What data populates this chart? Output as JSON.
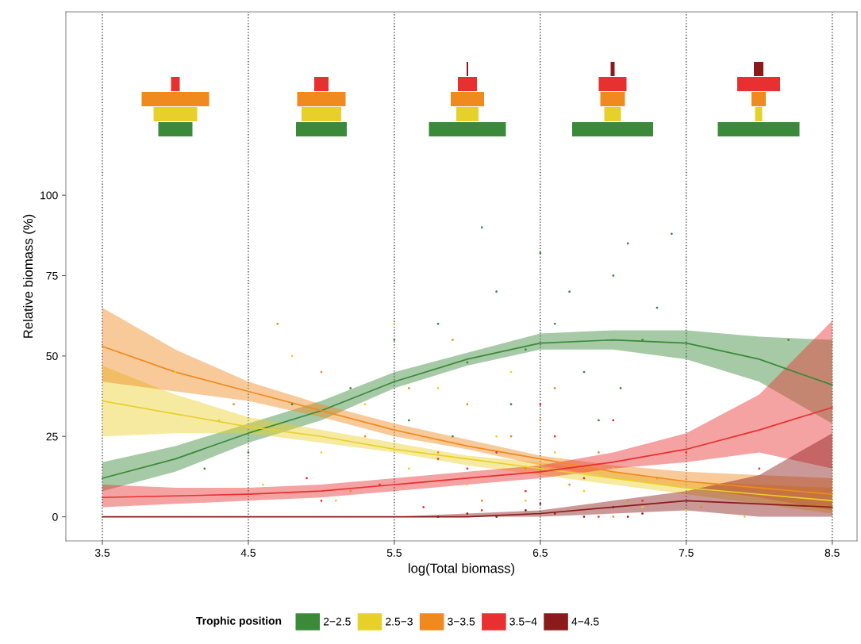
{
  "chart_data": {
    "type": "line",
    "xlabel": "log(Total biomass)",
    "ylabel": "Relative biomass (%)",
    "legend_title": "Trophic position",
    "xlim": [
      3.25,
      8.67
    ],
    "ylim": [
      -7.5,
      157
    ],
    "xticks": [
      3.5,
      4.5,
      5.5,
      6.5,
      7.5,
      8.5
    ],
    "yticks": [
      0,
      25,
      50,
      75,
      100
    ],
    "grid": "x",
    "legend": "bottom",
    "marker": "none",
    "line_style": "solid",
    "x": [
      3.5,
      4.0,
      4.5,
      5.0,
      5.5,
      6.0,
      6.5,
      7.0,
      7.5,
      8.0,
      8.5
    ],
    "series": [
      {
        "type": "scatter",
        "color": "#3a8a3a",
        "x": [
          5.2,
          5.5,
          5.8,
          6.0,
          6.2,
          6.3,
          6.5,
          6.6,
          6.8,
          7.0,
          7.1,
          7.2,
          7.3,
          6.9,
          6.4,
          5.9,
          4.8,
          4.5,
          4.2,
          7.4,
          8.2,
          6.1,
          5.6,
          7.05,
          6.7
        ],
        "values": [
          40,
          55,
          60,
          48,
          70,
          35,
          82,
          60,
          45,
          75,
          85,
          55,
          65,
          30,
          52,
          25,
          35,
          20,
          15,
          88,
          55,
          90,
          30,
          40,
          70
        ]
      },
      {
        "type": "scatter",
        "color": "#e8d02a",
        "x": [
          4.0,
          4.3,
          4.8,
          5.0,
          5.3,
          5.6,
          5.8,
          6.0,
          6.2,
          6.4,
          6.6,
          6.8,
          7.0,
          7.2,
          5.5,
          4.6,
          6.3,
          7.5,
          7.9,
          5.1
        ],
        "values": [
          45,
          30,
          50,
          20,
          35,
          15,
          40,
          10,
          25,
          5,
          20,
          8,
          15,
          3,
          60,
          10,
          45,
          2,
          0,
          5
        ]
      },
      {
        "type": "scatter",
        "color": "#f08a1e",
        "x": [
          4.7,
          5.0,
          5.3,
          5.6,
          5.8,
          6.0,
          6.1,
          6.3,
          6.5,
          6.7,
          6.9,
          7.1,
          7.3,
          5.2,
          5.9,
          6.4,
          7.0,
          4.4,
          6.6,
          7.6
        ],
        "values": [
          60,
          45,
          25,
          40,
          20,
          35,
          5,
          25,
          30,
          10,
          20,
          5,
          12,
          8,
          55,
          15,
          0,
          35,
          40,
          3
        ]
      },
      {
        "type": "scatter",
        "color": "#e83030",
        "x": [
          5.0,
          5.4,
          5.7,
          6.0,
          6.2,
          6.4,
          6.6,
          6.8,
          7.0,
          7.2,
          7.5,
          6.1,
          5.8,
          6.9,
          4.9,
          8.0,
          6.5
        ],
        "values": [
          5,
          10,
          3,
          15,
          20,
          8,
          25,
          12,
          30,
          5,
          20,
          2,
          18,
          0,
          12,
          15,
          35
        ]
      },
      {
        "type": "scatter",
        "color": "#8b1a1a",
        "x": [
          5.8,
          6.0,
          6.2,
          6.4,
          6.6,
          6.8,
          7.0,
          7.2,
          6.5,
          7.1
        ],
        "values": [
          0,
          1,
          0,
          2,
          1,
          0,
          3,
          1,
          4,
          0
        ]
      },
      {
        "name": "2−2.5",
        "color": "#3a8a3a",
        "values": [
          12,
          18,
          26,
          33,
          42,
          49,
          54,
          55,
          54,
          49,
          41
        ],
        "lower": [
          8,
          14,
          23,
          30,
          40,
          47,
          52,
          52,
          49,
          42,
          29
        ],
        "upper": [
          17,
          22,
          29,
          36,
          45,
          51,
          57,
          58,
          58,
          56,
          55
        ]
      },
      {
        "name": "2.5−3",
        "color": "#e8d02a",
        "values": [
          36,
          32,
          28,
          25,
          21,
          18,
          15,
          12,
          9,
          7,
          5
        ],
        "lower": [
          25,
          26,
          26,
          23,
          20,
          16,
          13,
          10,
          7,
          4,
          1
        ],
        "upper": [
          47,
          38,
          31,
          27,
          23,
          19,
          17,
          14,
          11,
          10,
          9
        ]
      },
      {
        "name": "3−3.5",
        "color": "#f08a1e",
        "values": [
          53,
          45,
          39,
          33,
          27,
          22,
          18,
          14,
          11,
          9,
          7
        ],
        "lower": [
          42,
          39,
          36,
          31,
          25,
          21,
          16,
          12,
          9,
          6,
          2
        ],
        "upper": [
          65,
          52,
          42,
          35,
          29,
          24,
          19,
          16,
          14,
          13,
          12
        ]
      },
      {
        "name": "3.5−4",
        "color": "#e83030",
        "values": [
          6,
          6.5,
          7,
          8,
          10,
          12,
          14,
          17,
          21,
          27,
          34
        ],
        "lower": [
          3,
          4,
          5,
          6,
          8,
          10,
          12,
          15,
          17,
          20,
          15
        ],
        "upper": [
          10,
          9,
          9,
          10,
          12,
          14,
          16,
          20,
          26,
          38,
          61
        ]
      },
      {
        "name": "4−4.5",
        "color": "#8b1a1a",
        "values": [
          0,
          0,
          0,
          0,
          0,
          0,
          1,
          3,
          5,
          4,
          3
        ],
        "lower": [
          0,
          0,
          0,
          0,
          0,
          0,
          0,
          1,
          2,
          0,
          0
        ],
        "upper": [
          0,
          0,
          0,
          0,
          0,
          1,
          2,
          5,
          8,
          13,
          26
        ]
      }
    ]
  }
}
